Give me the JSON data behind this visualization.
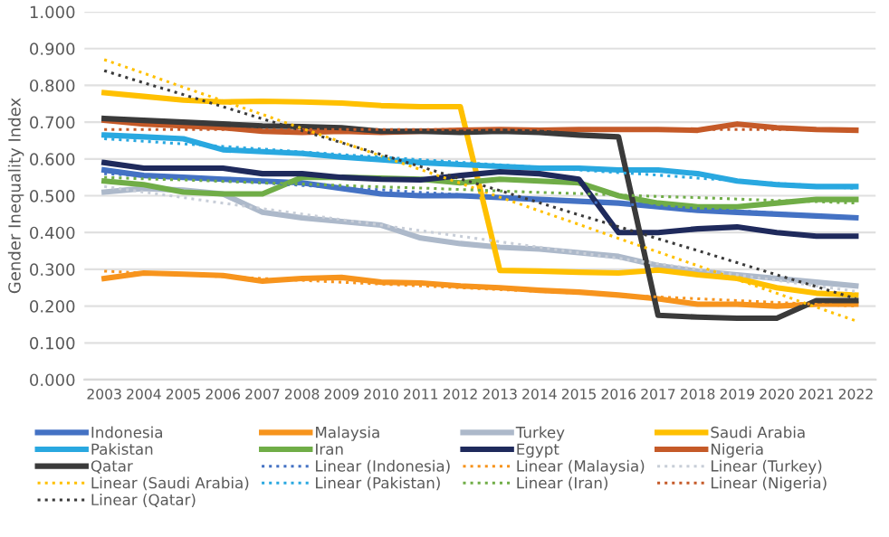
{
  "chart_data": {
    "type": "line",
    "ylabel": "Gender Inequality Index",
    "categories": [
      "2003",
      "2004",
      "2005",
      "2006",
      "2007",
      "2008",
      "2009",
      "2010",
      "2011",
      "2012",
      "2013",
      "2014",
      "2015",
      "2016",
      "2017",
      "2018",
      "2019",
      "2020",
      "2021",
      "2022"
    ],
    "series": [
      {
        "name": "Indonesia",
        "color": "#4472c4",
        "values": [
          0.57,
          0.555,
          0.55,
          0.545,
          0.54,
          0.535,
          0.52,
          0.505,
          0.5,
          0.5,
          0.495,
          0.49,
          0.485,
          0.48,
          0.47,
          0.46,
          0.455,
          0.45,
          0.445,
          0.44
        ]
      },
      {
        "name": "Malaysia",
        "color": "#f7941d",
        "values": [
          0.275,
          0.29,
          0.287,
          0.283,
          0.268,
          0.275,
          0.278,
          0.265,
          0.263,
          0.255,
          0.25,
          0.243,
          0.238,
          0.23,
          0.22,
          0.205,
          0.205,
          0.2,
          0.205,
          0.205
        ]
      },
      {
        "name": "Turkey",
        "color": "#adb9ca",
        "values": [
          0.51,
          0.52,
          0.515,
          0.505,
          0.455,
          0.44,
          0.43,
          0.42,
          0.385,
          0.37,
          0.36,
          0.355,
          0.345,
          0.335,
          0.31,
          0.295,
          0.285,
          0.275,
          0.265,
          0.255
        ]
      },
      {
        "name": "Saudi Arabia",
        "color": "#ffc000",
        "values": [
          0.78,
          0.77,
          0.76,
          0.755,
          0.757,
          0.755,
          0.752,
          0.745,
          0.742,
          0.742,
          0.297,
          0.295,
          0.292,
          0.29,
          0.298,
          0.285,
          0.275,
          0.25,
          0.235,
          0.23
        ]
      },
      {
        "name": "Pakistan",
        "color": "#29a8e0",
        "values": [
          0.665,
          0.66,
          0.655,
          0.625,
          0.62,
          0.615,
          0.605,
          0.598,
          0.59,
          0.585,
          0.58,
          0.575,
          0.575,
          0.57,
          0.57,
          0.56,
          0.54,
          0.53,
          0.525,
          0.525
        ]
      },
      {
        "name": "Iran",
        "color": "#70ad47",
        "values": [
          0.54,
          0.53,
          0.51,
          0.505,
          0.505,
          0.55,
          0.55,
          0.548,
          0.545,
          0.535,
          0.545,
          0.54,
          0.535,
          0.5,
          0.48,
          0.47,
          0.47,
          0.48,
          0.49,
          0.49
        ]
      },
      {
        "name": "Egypt",
        "color": "#1f2a5c",
        "values": [
          0.59,
          0.575,
          0.575,
          0.575,
          0.56,
          0.56,
          0.55,
          0.545,
          0.543,
          0.555,
          0.565,
          0.56,
          0.545,
          0.4,
          0.4,
          0.41,
          0.415,
          0.4,
          0.39,
          0.39
        ]
      },
      {
        "name": "Nigeria",
        "color": "#c55a28",
        "values": [
          0.705,
          0.695,
          0.69,
          0.685,
          0.675,
          0.672,
          0.675,
          0.672,
          0.675,
          0.678,
          0.68,
          0.678,
          0.68,
          0.68,
          0.68,
          0.678,
          0.695,
          0.685,
          0.68,
          0.678
        ]
      },
      {
        "name": "Qatar",
        "color": "#3a3a3a",
        "values": [
          0.71,
          0.705,
          0.7,
          0.695,
          0.69,
          0.688,
          0.685,
          0.675,
          0.675,
          0.672,
          0.675,
          0.672,
          0.665,
          0.66,
          0.175,
          0.17,
          0.167,
          0.167,
          0.215,
          0.215
        ]
      },
      {
        "name": "Linear (Indonesia)",
        "color": "#4472c4",
        "line_style": "dotted",
        "values": [
          0.56,
          0.554,
          0.547,
          0.541,
          0.535,
          0.528,
          0.522,
          0.516,
          0.509,
          0.503,
          0.497,
          0.491,
          0.484,
          0.478,
          0.472,
          0.465,
          0.459,
          0.453,
          0.446,
          0.44
        ]
      },
      {
        "name": "Linear (Malaysia)",
        "color": "#f7941d",
        "line_style": "dotted",
        "values": [
          0.295,
          0.29,
          0.285,
          0.28,
          0.275,
          0.27,
          0.265,
          0.26,
          0.255,
          0.25,
          0.245,
          0.24,
          0.235,
          0.23,
          0.225,
          0.22,
          0.215,
          0.21,
          0.205,
          0.2
        ]
      },
      {
        "name": "Linear (Turkey)",
        "color": "#c8ced8",
        "line_style": "dotted",
        "values": [
          0.525,
          0.51,
          0.495,
          0.48,
          0.465,
          0.45,
          0.435,
          0.42,
          0.405,
          0.39,
          0.375,
          0.36,
          0.345,
          0.33,
          0.315,
          0.3,
          0.285,
          0.27,
          0.255,
          0.24
        ]
      },
      {
        "name": "Linear (Saudi Arabia)",
        "color": "#ffc000",
        "line_style": "dotted",
        "values": [
          0.87,
          0.833,
          0.795,
          0.758,
          0.721,
          0.683,
          0.646,
          0.608,
          0.571,
          0.534,
          0.496,
          0.459,
          0.422,
          0.384,
          0.347,
          0.31,
          0.272,
          0.235,
          0.197,
          0.16
        ]
      },
      {
        "name": "Linear (Pakistan)",
        "color": "#29a8e0",
        "line_style": "dotted",
        "values": [
          0.655,
          0.648,
          0.641,
          0.634,
          0.627,
          0.619,
          0.612,
          0.605,
          0.598,
          0.591,
          0.584,
          0.577,
          0.57,
          0.563,
          0.556,
          0.548,
          0.541,
          0.534,
          0.527,
          0.52
        ]
      },
      {
        "name": "Linear (Iran)",
        "color": "#70ad47",
        "line_style": "dotted",
        "values": [
          0.55,
          0.546,
          0.543,
          0.539,
          0.535,
          0.532,
          0.528,
          0.524,
          0.521,
          0.517,
          0.513,
          0.509,
          0.506,
          0.502,
          0.498,
          0.495,
          0.491,
          0.487,
          0.484,
          0.48
        ]
      },
      {
        "name": "Linear (Nigeria)",
        "color": "#c55a28",
        "line_style": "dotted",
        "values": [
          0.68,
          0.68,
          0.68,
          0.68,
          0.68,
          0.68,
          0.68,
          0.68,
          0.68,
          0.68,
          0.68,
          0.68,
          0.68,
          0.68,
          0.68,
          0.68,
          0.68,
          0.68,
          0.68,
          0.68
        ]
      },
      {
        "name": "Linear (Qatar)",
        "color": "#3a3a3a",
        "line_style": "dotted",
        "values": [
          0.84,
          0.807,
          0.775,
          0.742,
          0.709,
          0.677,
          0.644,
          0.612,
          0.579,
          0.546,
          0.514,
          0.481,
          0.448,
          0.416,
          0.383,
          0.351,
          0.318,
          0.285,
          0.253,
          0.22
        ]
      }
    ],
    "ylim": [
      0,
      1
    ],
    "yticks": [
      {
        "value": 0,
        "label": "0.000"
      },
      {
        "value": 0.1,
        "label": "0.100"
      },
      {
        "value": 0.2,
        "label": "0.200"
      },
      {
        "value": 0.3,
        "label": "0.300"
      },
      {
        "value": 0.4,
        "label": "0.400"
      },
      {
        "value": 0.5,
        "label": "0.500"
      },
      {
        "value": 0.6,
        "label": "0.600"
      },
      {
        "value": 0.7,
        "label": "0.700"
      },
      {
        "value": 0.8,
        "label": "0.800"
      },
      {
        "value": 0.9,
        "label": "0.900"
      },
      {
        "value": 1,
        "label": "1.000"
      }
    ],
    "grid": "y",
    "legend": "bottom",
    "line_style": "solid"
  }
}
